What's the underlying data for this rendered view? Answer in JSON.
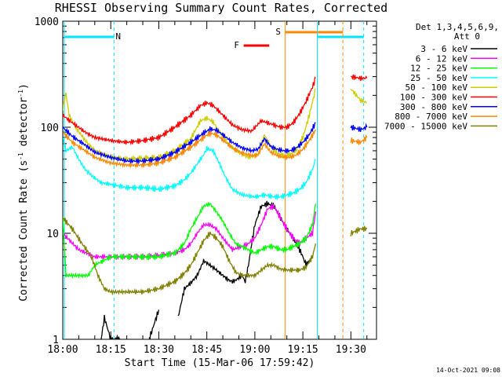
{
  "chart_data": {
    "type": "line",
    "title": "RHESSI Observing Summary Count Rates, Corrected",
    "xlabel": "Start Time (15-Mar-06 17:59:42)",
    "ylabel_main": "Corrected Count Rate (s",
    "ylabel_sup1": "-1",
    "ylabel_mid": " detector",
    "ylabel_sup2": "-1",
    "ylabel_end": ")",
    "yscale": "log",
    "ylim": [
      1,
      1000
    ],
    "xlim_minutes": [
      0,
      98
    ],
    "x_ticks": [
      "18:00",
      "18:15",
      "18:30",
      "18:45",
      "19:00",
      "19:15",
      "19:30"
    ],
    "y_ticks": [
      "1",
      "10",
      "100",
      "1000"
    ],
    "legend": {
      "header1": "Det 1,3,4,5,6,9,",
      "header2": "Att 0"
    },
    "series": [
      {
        "name": "3 - 6 keV",
        "color": "#000000",
        "points": [
          [
            12,
            1
          ],
          [
            13,
            1.6
          ],
          [
            15,
            1
          ],
          [
            18,
            1
          ],
          [
            27,
            1
          ],
          [
            30,
            1.9
          ],
          [
            36,
            1.6
          ],
          [
            38,
            3
          ],
          [
            40,
            3.4
          ],
          [
            42,
            4
          ],
          [
            44,
            5.5
          ],
          [
            46,
            5
          ],
          [
            48,
            4.5
          ],
          [
            50,
            4
          ],
          [
            52,
            3.6
          ],
          [
            53,
            3.5
          ],
          [
            54,
            3.6
          ],
          [
            56,
            4
          ],
          [
            57,
            3.5
          ],
          [
            58,
            5
          ],
          [
            59,
            8
          ],
          [
            60,
            12
          ],
          [
            62,
            18
          ],
          [
            64,
            19
          ],
          [
            66,
            18
          ],
          [
            68,
            14
          ],
          [
            70,
            11
          ],
          [
            72,
            9
          ],
          [
            74,
            7
          ],
          [
            75,
            6
          ],
          [
            76,
            5
          ],
          [
            77,
            5.5
          ],
          [
            78,
            6
          ]
        ]
      },
      {
        "name": "6 - 12 keV",
        "color": "#ff00ff",
        "points": [
          [
            0,
            10
          ],
          [
            5,
            7
          ],
          [
            10,
            6
          ],
          [
            15,
            6
          ],
          [
            20,
            6
          ],
          [
            25,
            6
          ],
          [
            30,
            6.2
          ],
          [
            35,
            6.5
          ],
          [
            38,
            7
          ],
          [
            40,
            8
          ],
          [
            42,
            10
          ],
          [
            44,
            12
          ],
          [
            46,
            12
          ],
          [
            48,
            11
          ],
          [
            50,
            9
          ],
          [
            53,
            7
          ],
          [
            56,
            7.5
          ],
          [
            58,
            8
          ],
          [
            60,
            9
          ],
          [
            62,
            12
          ],
          [
            64,
            17
          ],
          [
            66,
            18
          ],
          [
            68,
            14
          ],
          [
            70,
            11
          ],
          [
            72,
            9
          ],
          [
            74,
            8
          ],
          [
            76,
            9
          ],
          [
            78,
            10
          ],
          [
            79,
            16
          ]
        ]
      },
      {
        "name": "12 - 25 keV",
        "color": "#00ff00",
        "points": [
          [
            0,
            14
          ],
          [
            1,
            4
          ],
          [
            3,
            4
          ],
          [
            8,
            4
          ],
          [
            10,
            5
          ],
          [
            15,
            6
          ],
          [
            20,
            6
          ],
          [
            25,
            6
          ],
          [
            30,
            6
          ],
          [
            35,
            6.5
          ],
          [
            38,
            8
          ],
          [
            40,
            11
          ],
          [
            42,
            14
          ],
          [
            44,
            18
          ],
          [
            46,
            19
          ],
          [
            48,
            16
          ],
          [
            50,
            13
          ],
          [
            52,
            10
          ],
          [
            54,
            8
          ],
          [
            56,
            7.5
          ],
          [
            58,
            7
          ],
          [
            60,
            6.5
          ],
          [
            62,
            7
          ],
          [
            64,
            7.5
          ],
          [
            66,
            7.5
          ],
          [
            68,
            7
          ],
          [
            70,
            7
          ],
          [
            72,
            7.5
          ],
          [
            74,
            8
          ],
          [
            76,
            9
          ],
          [
            78,
            12
          ],
          [
            79,
            19
          ]
        ]
      },
      {
        "name": "25 - 50 keV",
        "color": "#00ffff",
        "points": [
          [
            0,
            80
          ],
          [
            1,
            60
          ],
          [
            3,
            65
          ],
          [
            5,
            50
          ],
          [
            7,
            40
          ],
          [
            9,
            35
          ],
          [
            12,
            30
          ],
          [
            15,
            29
          ],
          [
            20,
            27
          ],
          [
            25,
            27
          ],
          [
            30,
            26
          ],
          [
            35,
            28
          ],
          [
            38,
            32
          ],
          [
            40,
            37
          ],
          [
            42,
            45
          ],
          [
            44,
            55
          ],
          [
            45,
            63
          ],
          [
            47,
            60
          ],
          [
            49,
            45
          ],
          [
            51,
            33
          ],
          [
            53,
            26
          ],
          [
            56,
            23
          ],
          [
            60,
            22
          ],
          [
            63,
            23
          ],
          [
            66,
            22
          ],
          [
            68,
            22
          ],
          [
            70,
            23
          ],
          [
            72,
            24
          ],
          [
            74,
            26
          ],
          [
            76,
            30
          ],
          [
            78,
            40
          ],
          [
            79,
            50
          ]
        ]
      },
      {
        "name": "50 - 100 keV",
        "color": "#cccc00",
        "points": [
          [
            0,
            150
          ],
          [
            1,
            210
          ],
          [
            2,
            130
          ],
          [
            4,
            100
          ],
          [
            7,
            75
          ],
          [
            10,
            60
          ],
          [
            15,
            52
          ],
          [
            20,
            50
          ],
          [
            25,
            51
          ],
          [
            30,
            52
          ],
          [
            35,
            60
          ],
          [
            40,
            78
          ],
          [
            43,
            115
          ],
          [
            45,
            122
          ],
          [
            47,
            112
          ],
          [
            49,
            90
          ],
          [
            52,
            68
          ],
          [
            55,
            58
          ],
          [
            58,
            52
          ],
          [
            61,
            55
          ],
          [
            63,
            85
          ],
          [
            65,
            65
          ],
          [
            67,
            57
          ],
          [
            69,
            54
          ],
          [
            71,
            55
          ],
          [
            73,
            62
          ],
          [
            75,
            80
          ],
          [
            77,
            130
          ],
          [
            79,
            230
          ],
          [
            90,
            230
          ],
          [
            93,
            180
          ],
          [
            95,
            170
          ]
        ]
      },
      {
        "name": "100 - 300 keV",
        "color": "#ff0000",
        "points": [
          [
            0,
            130
          ],
          [
            3,
            110
          ],
          [
            7,
            90
          ],
          [
            10,
            80
          ],
          [
            15,
            75
          ],
          [
            20,
            72
          ],
          [
            25,
            75
          ],
          [
            30,
            80
          ],
          [
            35,
            100
          ],
          [
            40,
            130
          ],
          [
            43,
            160
          ],
          [
            45,
            170
          ],
          [
            47,
            160
          ],
          [
            50,
            130
          ],
          [
            53,
            105
          ],
          [
            56,
            95
          ],
          [
            59,
            92
          ],
          [
            62,
            115
          ],
          [
            64,
            110
          ],
          [
            66,
            105
          ],
          [
            68,
            100
          ],
          [
            70,
            100
          ],
          [
            72,
            110
          ],
          [
            74,
            135
          ],
          [
            76,
            175
          ],
          [
            78,
            240
          ],
          [
            79,
            290
          ],
          [
            90,
            300
          ],
          [
            93,
            290
          ],
          [
            95,
            290
          ]
        ]
      },
      {
        "name": "300 - 800 keV",
        "color": "#0000ff",
        "points": [
          [
            0,
            100
          ],
          [
            3,
            82
          ],
          [
            7,
            68
          ],
          [
            10,
            58
          ],
          [
            15,
            52
          ],
          [
            20,
            48
          ],
          [
            25,
            48
          ],
          [
            30,
            50
          ],
          [
            35,
            58
          ],
          [
            40,
            72
          ],
          [
            44,
            88
          ],
          [
            46,
            96
          ],
          [
            48,
            94
          ],
          [
            50,
            85
          ],
          [
            53,
            72
          ],
          [
            56,
            64
          ],
          [
            59,
            60
          ],
          [
            61,
            62
          ],
          [
            63,
            78
          ],
          [
            65,
            66
          ],
          [
            67,
            62
          ],
          [
            69,
            60
          ],
          [
            71,
            60
          ],
          [
            73,
            64
          ],
          [
            75,
            72
          ],
          [
            77,
            85
          ],
          [
            79,
            110
          ],
          [
            90,
            100
          ],
          [
            93,
            95
          ],
          [
            95,
            100
          ]
        ]
      },
      {
        "name": "800 - 7000 keV",
        "color": "#ff8800",
        "points": [
          [
            0,
            90
          ],
          [
            3,
            72
          ],
          [
            7,
            60
          ],
          [
            10,
            52
          ],
          [
            15,
            46
          ],
          [
            20,
            44
          ],
          [
            25,
            44
          ],
          [
            30,
            46
          ],
          [
            35,
            52
          ],
          [
            40,
            65
          ],
          [
            44,
            80
          ],
          [
            46,
            88
          ],
          [
            48,
            85
          ],
          [
            50,
            76
          ],
          [
            53,
            64
          ],
          [
            56,
            57
          ],
          [
            59,
            54
          ],
          [
            61,
            55
          ],
          [
            63,
            70
          ],
          [
            65,
            58
          ],
          [
            67,
            54
          ],
          [
            69,
            52
          ],
          [
            71,
            52
          ],
          [
            73,
            55
          ],
          [
            75,
            62
          ],
          [
            77,
            75
          ],
          [
            79,
            95
          ],
          [
            90,
            75
          ],
          [
            93,
            72
          ],
          [
            95,
            80
          ]
        ]
      },
      {
        "name": "7000 - 15000 keV",
        "color": "#808000",
        "points": [
          [
            0,
            14
          ],
          [
            3,
            11
          ],
          [
            6,
            8
          ],
          [
            9,
            6
          ],
          [
            11,
            4
          ],
          [
            13,
            3
          ],
          [
            15,
            2.8
          ],
          [
            20,
            2.8
          ],
          [
            25,
            2.8
          ],
          [
            30,
            3
          ],
          [
            35,
            3.5
          ],
          [
            38,
            4.2
          ],
          [
            40,
            5
          ],
          [
            42,
            6.5
          ],
          [
            44,
            8.5
          ],
          [
            46,
            10
          ],
          [
            48,
            9
          ],
          [
            50,
            7.5
          ],
          [
            52,
            5.5
          ],
          [
            54,
            4.3
          ],
          [
            56,
            4
          ],
          [
            58,
            4
          ],
          [
            60,
            4
          ],
          [
            62,
            4.5
          ],
          [
            64,
            5
          ],
          [
            66,
            5
          ],
          [
            68,
            4.6
          ],
          [
            70,
            4.5
          ],
          [
            72,
            4.5
          ],
          [
            74,
            4.5
          ],
          [
            76,
            4.8
          ],
          [
            78,
            6
          ],
          [
            79,
            8
          ],
          [
            90,
            10
          ],
          [
            93,
            11
          ],
          [
            95,
            11
          ]
        ]
      }
    ],
    "flags": [
      {
        "label": "N",
        "color": "#00e5ff"
      },
      {
        "label": "F",
        "color": "#ff0000"
      },
      {
        "label": "S",
        "color": "#ff8800"
      }
    ],
    "footer": "14-Oct-2021 09:08"
  }
}
